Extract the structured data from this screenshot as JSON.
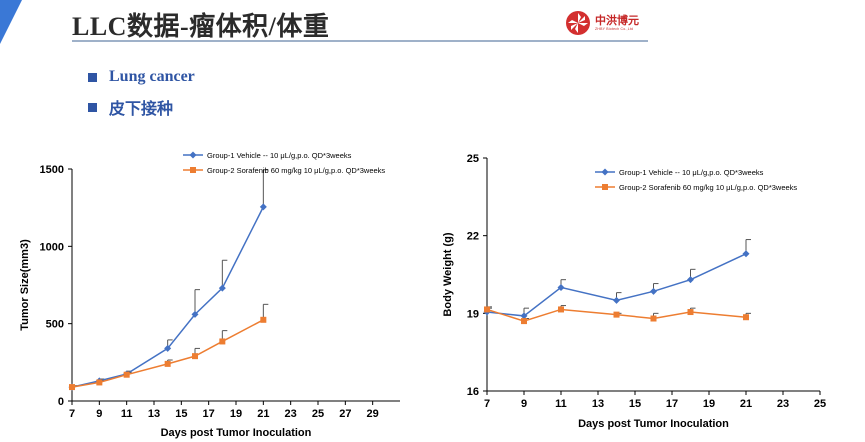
{
  "slide": {
    "title": "LLC数据-瘤体积/体重",
    "logo": {
      "name": "中洪博元",
      "subtitle": "ZHBY Biotech Co.,Ltd"
    },
    "bullets": [
      "Lung cancer",
      "皮下接种"
    ]
  },
  "colors": {
    "accent": "#3a78d6",
    "series1": "#4472c4",
    "series2": "#ed7d31",
    "bullet": "#2f55a4"
  },
  "chart_data": [
    {
      "type": "line",
      "title": "",
      "xlabel": "Days post Tumor Inoculation",
      "ylabel": "Tumor Size(mm3)",
      "xlim": [
        7,
        31
      ],
      "ylim": [
        0,
        1500
      ],
      "x_ticks": [
        "7",
        "9",
        "11",
        "13",
        "15",
        "17",
        "19",
        "21",
        "23",
        "25",
        "27",
        "29"
      ],
      "y_ticks": [
        "0",
        "500",
        "1000",
        "1500"
      ],
      "legend": "top-center",
      "series": [
        {
          "name": "Group-1 Vehicle -- 10 μL/g,p.o. QD*3weeks",
          "color": "#4472c4",
          "marker": "diamond",
          "x": [
            7,
            9,
            11,
            14,
            16,
            18,
            21
          ],
          "y": [
            90,
            130,
            175,
            340,
            560,
            730,
            1255
          ],
          "err": [
            8,
            12,
            18,
            55,
            160,
            180,
            240
          ]
        },
        {
          "name": "Group-2 Sorafenib 60 mg/kg 10 μL/g,p.o. QD*3weeks",
          "color": "#ed7d31",
          "marker": "square",
          "x": [
            7,
            9,
            11,
            14,
            16,
            18,
            21
          ],
          "y": [
            90,
            120,
            170,
            240,
            290,
            385,
            525
          ],
          "err": [
            8,
            10,
            15,
            25,
            50,
            70,
            100
          ]
        }
      ]
    },
    {
      "type": "line",
      "title": "",
      "xlabel": "Days post Tumor Inoculation",
      "ylabel": "Body Weight (g)",
      "xlim": [
        7,
        25
      ],
      "ylim": [
        16,
        25
      ],
      "x_ticks": [
        "7",
        "9",
        "11",
        "13",
        "15",
        "17",
        "19",
        "21",
        "23",
        "25"
      ],
      "y_ticks": [
        "16",
        "19",
        "22",
        "25"
      ],
      "legend": "top-center",
      "series": [
        {
          "name": "Group-1 Vehicle -- 10 μL/g,p.o. QD*3weeks",
          "color": "#4472c4",
          "marker": "diamond",
          "x": [
            7,
            9,
            11,
            14,
            16,
            18,
            21
          ],
          "y": [
            19.05,
            18.9,
            20.0,
            19.5,
            19.85,
            20.3,
            21.3
          ],
          "err": [
            0.15,
            0.3,
            0.3,
            0.3,
            0.3,
            0.4,
            0.55
          ]
        },
        {
          "name": "Group-2 Sorafenib 60 mg/kg 10 μL/g,p.o. QD*3weeks",
          "color": "#ed7d31",
          "marker": "square",
          "x": [
            7,
            9,
            11,
            14,
            16,
            18,
            21
          ],
          "y": [
            19.15,
            18.7,
            19.15,
            18.95,
            18.8,
            19.05,
            18.85
          ],
          "err": [
            0.1,
            0.1,
            0.15,
            0.05,
            0.2,
            0.15,
            0.15
          ]
        }
      ]
    }
  ]
}
